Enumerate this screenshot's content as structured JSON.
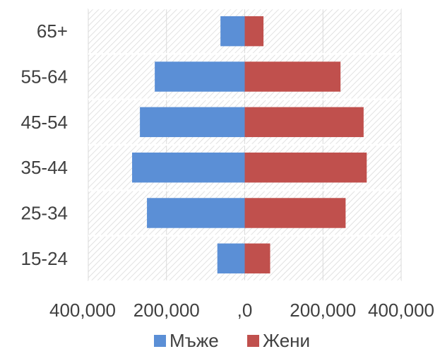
{
  "chart_data": {
    "type": "bar",
    "orientation": "horizontal",
    "layout": "population-pyramid",
    "categories": [
      "15-24",
      "25-34",
      "35-44",
      "45-54",
      "55-64",
      "65+"
    ],
    "series": [
      {
        "name": "Мъже",
        "values": [
          70000,
          250000,
          288000,
          268000,
          230000,
          62000
        ],
        "color": "#5B8FD6"
      },
      {
        "name": "Жени",
        "values": [
          65000,
          258000,
          312000,
          304000,
          245000,
          48000
        ],
        "color": "#C0504D"
      }
    ],
    "xlim": [
      -400000,
      400000
    ],
    "x_ticks": [
      -400000,
      -200000,
      0,
      200000,
      400000
    ],
    "x_tick_labels": [
      "400,000",
      "200,000",
      ",0",
      "200,000",
      "400,000"
    ],
    "grid": true,
    "plot_background": "hatched",
    "legend_position": "bottom"
  }
}
